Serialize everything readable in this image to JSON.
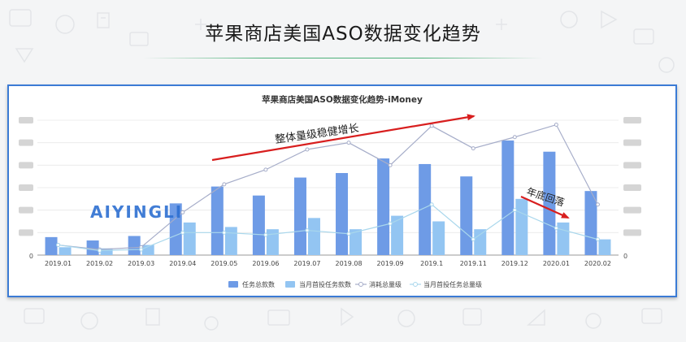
{
  "page": {
    "title": "苹果商店美国ASO数据变化趋势"
  },
  "watermark": {
    "text": "AIYINGLI"
  },
  "annotations": {
    "growth": "整体量级稳健增长",
    "decline": "年底回落"
  },
  "colors": {
    "bar_total": "#6e9be6",
    "bar_first": "#93c5f2",
    "line_consume": "#a6adc9",
    "line_first": "#a9d7ec",
    "arrow": "#d81e1e",
    "frame": "#3b7bd5"
  },
  "chart_data": {
    "type": "bar",
    "title": "苹果商店美国ASO数据变化趋势-iMoney",
    "categories": [
      "2019.01",
      "2019.02",
      "2019.03",
      "2019.04",
      "2019.05",
      "2019.06",
      "2019.07",
      "2019.08",
      "2019.09",
      "2019.1",
      "2019.11",
      "2019.12",
      "2020.01",
      "2020.02"
    ],
    "left_axis": {
      "min": 0,
      "max": 60,
      "zero_label": "0"
    },
    "right_axis": {
      "min": 0,
      "max": 60,
      "zero_label": "0"
    },
    "series": [
      {
        "name": "任务总款数",
        "kind": "bar",
        "axis": "left",
        "values": [
          8,
          6.5,
          8.5,
          23,
          30.5,
          26.5,
          34.5,
          36.5,
          43,
          40.5,
          35,
          51,
          46,
          28.5
        ]
      },
      {
        "name": "当月首投任务款数",
        "kind": "bar",
        "axis": "left",
        "values": [
          3.5,
          3,
          4.5,
          14.5,
          12.5,
          11.5,
          16.5,
          11.5,
          17.5,
          15,
          11.5,
          25,
          14.5,
          7
        ]
      },
      {
        "name": "消耗总量级",
        "kind": "line",
        "axis": "right",
        "values": [
          4.5,
          2.5,
          3.5,
          19,
          31.5,
          38,
          47,
          50,
          40,
          57.5,
          47.5,
          52.5,
          58,
          22.5
        ]
      },
      {
        "name": "当月首投任务总量级",
        "kind": "line",
        "axis": "right",
        "values": [
          4.5,
          2,
          2.5,
          10,
          10,
          9,
          11,
          9.5,
          14,
          22.5,
          7,
          20,
          12,
          7
        ]
      }
    ]
  }
}
